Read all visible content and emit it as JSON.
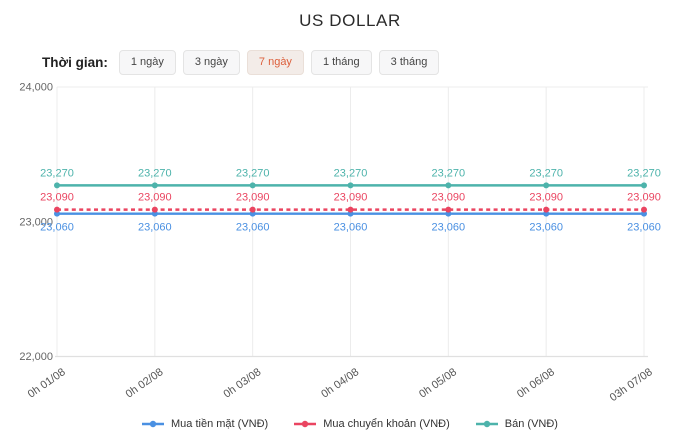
{
  "title": "US DOLLAR",
  "filters": {
    "label": "Thời gian:",
    "options": [
      "1 ngày",
      "3 ngày",
      "7 ngày",
      "1 tháng",
      "3 tháng"
    ],
    "selected": "7 ngày"
  },
  "colors": {
    "accent_selected": "#dd5f3b",
    "grid": "#ececec",
    "axis": "#e0e0e0",
    "tick_text": "#666666",
    "xlabel_text": "#555555",
    "title_text": "#2b2b2b",
    "legend_text": "#333333"
  },
  "chart_data": {
    "type": "line",
    "title": "US DOLLAR",
    "x": [
      "0h 01/08",
      "0h 02/08",
      "0h 03/08",
      "0h 04/08",
      "0h 05/08",
      "0h 06/08",
      "03h 07/08"
    ],
    "series": [
      {
        "name": "Mua tiền mặt (VNĐ)",
        "values": [
          23060,
          23060,
          23060,
          23060,
          23060,
          23060,
          23060
        ],
        "color": "#4a90e2",
        "style": "solid",
        "label_position": "below"
      },
      {
        "name": "Mua chuyển khoản (VNĐ)",
        "values": [
          23090,
          23090,
          23090,
          23090,
          23090,
          23090,
          23090
        ],
        "color": "#ea4561",
        "style": "dashed",
        "label_position": "above"
      },
      {
        "name": "Bán (VNĐ)",
        "values": [
          23270,
          23270,
          23270,
          23270,
          23270,
          23270,
          23270
        ],
        "color": "#4db3ab",
        "style": "solid",
        "label_position": "above"
      }
    ],
    "ylim": [
      22000,
      24000
    ],
    "yticks": [
      22000,
      23000,
      24000
    ],
    "grid": "vertical-per-point-and-top",
    "legend_position": "bottom",
    "data_labels": true
  }
}
